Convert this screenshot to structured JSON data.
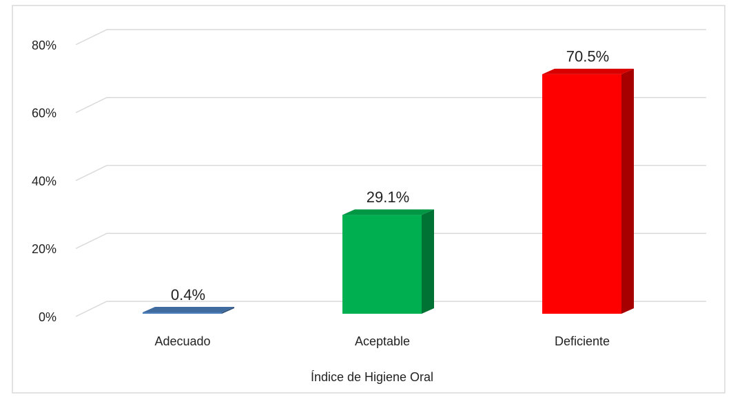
{
  "chart_data": {
    "type": "bar3d",
    "x_label": "Índice de Higiene Oral",
    "categories": [
      "Adecuado",
      "Aceptable",
      "Deficiente"
    ],
    "values": [
      0.4,
      29.1,
      70.5
    ],
    "value_labels": [
      "0.4%",
      "29.1%",
      "70.5%"
    ],
    "colors": [
      "#4a7ebb",
      "#00b050",
      "#ff0000"
    ],
    "ylim": [
      0,
      80
    ],
    "yticks": [
      {
        "value": 0,
        "label": "0%"
      },
      {
        "value": 20,
        "label": "20%"
      },
      {
        "value": 40,
        "label": "40%"
      },
      {
        "value": 60,
        "label": "60%"
      },
      {
        "value": 80,
        "label": "80%"
      }
    ],
    "grid": true
  }
}
